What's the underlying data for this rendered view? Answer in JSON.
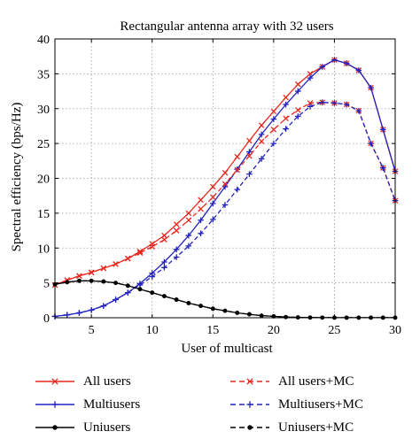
{
  "chart_data": {
    "type": "line",
    "title": "Rectangular antenna array with 32 users",
    "xlabel": "User of multicast",
    "ylabel": "Spectral efficiency (bps/Hz)",
    "xlim": [
      2,
      30
    ],
    "ylim": [
      0,
      40
    ],
    "xticks": [
      5,
      10,
      15,
      20,
      25,
      30
    ],
    "yticks": [
      0,
      5,
      10,
      15,
      20,
      25,
      30,
      35,
      40
    ],
    "grid": true,
    "legend_position": "bottom",
    "x": [
      2,
      3,
      4,
      5,
      6,
      7,
      8,
      9,
      10,
      11,
      12,
      13,
      14,
      15,
      16,
      17,
      18,
      19,
      20,
      21,
      22,
      23,
      24,
      25,
      26,
      27,
      28,
      29,
      30
    ],
    "series": [
      {
        "name": "All users",
        "color": "#e8281e",
        "dash": "solid",
        "marker": "x",
        "values": [
          4.7,
          5.4,
          6.0,
          6.5,
          7.1,
          7.7,
          8.5,
          9.5,
          10.6,
          11.8,
          13.4,
          15.0,
          16.9,
          18.8,
          20.8,
          23.1,
          25.4,
          27.6,
          29.6,
          31.6,
          33.5,
          35.0,
          36.0,
          37.0,
          36.5,
          35.5,
          33.0,
          27.0,
          21.0
        ]
      },
      {
        "name": "Multiusers",
        "color": "#2323c0",
        "dash": "solid",
        "marker": "+",
        "values": [
          0.2,
          0.4,
          0.7,
          1.1,
          1.7,
          2.6,
          3.6,
          4.9,
          6.4,
          8.0,
          9.8,
          11.8,
          14.0,
          16.4,
          18.8,
          21.3,
          23.8,
          26.3,
          28.5,
          30.6,
          32.5,
          34.4,
          36.0,
          37.0,
          36.5,
          35.5,
          33.0,
          27.0,
          21.0
        ]
      },
      {
        "name": "Uniusers",
        "color": "#000000",
        "dash": "solid",
        "marker": "dot",
        "values": [
          4.8,
          5.1,
          5.3,
          5.3,
          5.2,
          5.0,
          4.6,
          4.1,
          3.6,
          3.1,
          2.6,
          2.1,
          1.7,
          1.3,
          1.0,
          0.7,
          0.5,
          0.3,
          0.2,
          0.1,
          0.05,
          0.03,
          0.02,
          0.01,
          0.01,
          0.01,
          0.01,
          0.01,
          0.01
        ]
      },
      {
        "name": "All users+MC",
        "color": "#e8281e",
        "dash": "dashed",
        "marker": "x",
        "values": [
          4.7,
          5.4,
          6.0,
          6.5,
          7.1,
          7.7,
          8.5,
          9.3,
          10.2,
          11.2,
          12.5,
          14.0,
          15.6,
          17.3,
          19.2,
          21.2,
          23.2,
          25.3,
          27.0,
          28.6,
          29.8,
          30.8,
          30.9,
          30.8,
          30.6,
          29.7,
          25.0,
          21.5,
          16.8
        ]
      },
      {
        "name": "Multiusers+MC",
        "color": "#2323c0",
        "dash": "dashed",
        "marker": "+",
        "values": [
          0.2,
          0.4,
          0.7,
          1.1,
          1.7,
          2.6,
          3.6,
          4.7,
          5.9,
          7.2,
          8.7,
          10.3,
          12.1,
          14.1,
          16.2,
          18.4,
          20.6,
          22.8,
          25.0,
          27.1,
          28.9,
          30.3,
          30.9,
          30.8,
          30.6,
          29.7,
          25.0,
          21.5,
          16.8
        ]
      },
      {
        "name": "Uniusers+MC",
        "color": "#000000",
        "dash": "dashed",
        "marker": "dot",
        "values": [
          4.8,
          5.1,
          5.3,
          5.3,
          5.2,
          5.0,
          4.6,
          4.1,
          3.6,
          3.1,
          2.6,
          2.1,
          1.7,
          1.3,
          1.0,
          0.7,
          0.5,
          0.3,
          0.2,
          0.1,
          0.05,
          0.03,
          0.02,
          0.01,
          0.01,
          0.01,
          0.01,
          0.01,
          0.01
        ]
      }
    ]
  }
}
